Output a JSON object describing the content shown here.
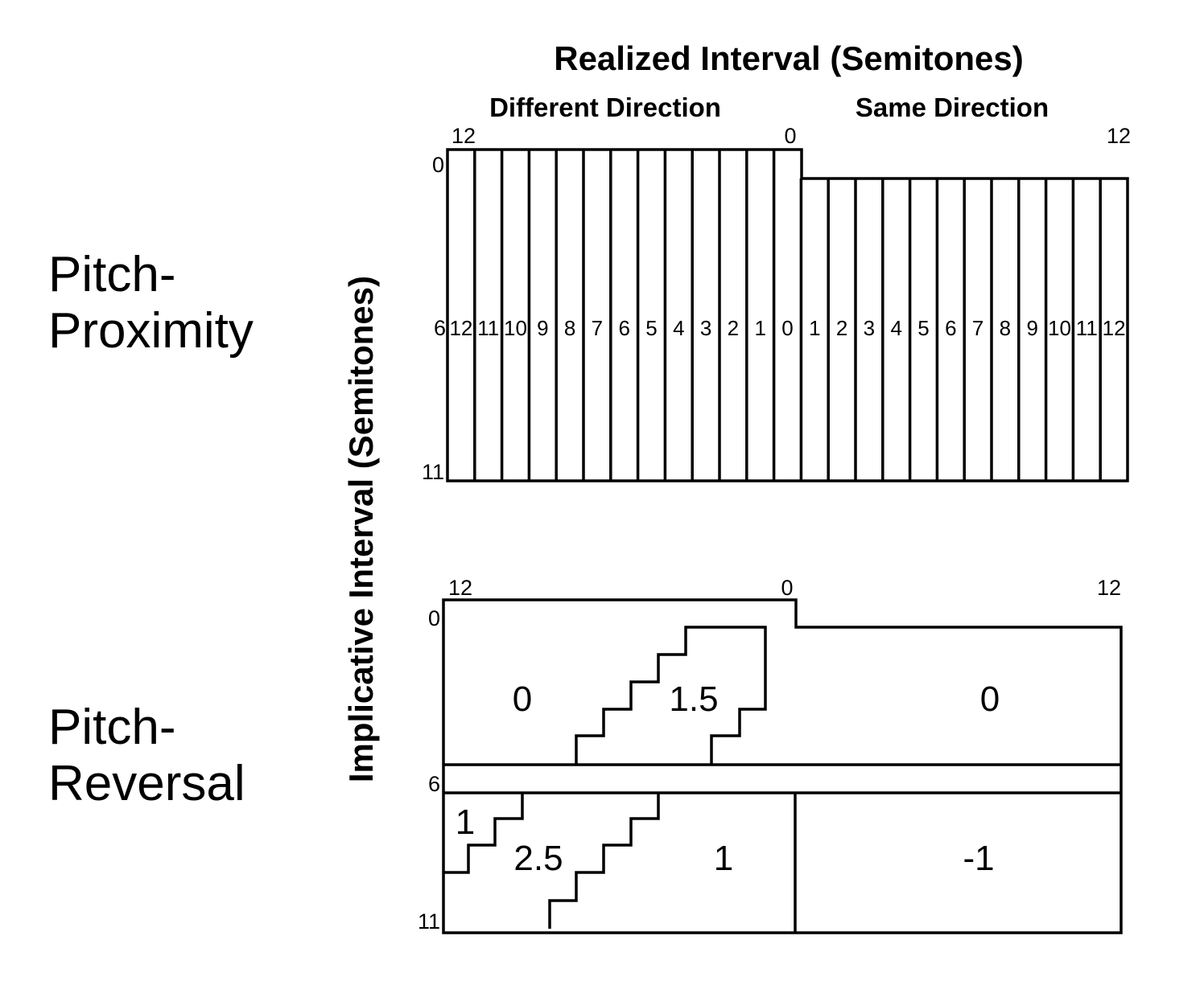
{
  "title": "Realized Interval (Semitones)",
  "subtitle_left": "Different Direction",
  "subtitle_right": "Same Direction",
  "y_axis_label": "Implicative Interval (Semitones)",
  "panels": [
    {
      "id": "proximity",
      "label_line1": "Pitch-",
      "label_line2": "Proximity",
      "x_tick_left": "12",
      "x_tick_center": "0",
      "x_tick_right": "12",
      "y_tick_top": "0",
      "y_tick_mid": "6",
      "y_tick_bottom": "11",
      "columns_left": [
        "12",
        "11",
        "10",
        "9",
        "8",
        "7",
        "6",
        "5",
        "4",
        "3",
        "2",
        "1",
        "0"
      ],
      "columns_right": [
        "1",
        "2",
        "3",
        "4",
        "5",
        "6",
        "7",
        "8",
        "9",
        "10",
        "11",
        "12"
      ]
    },
    {
      "id": "reversal",
      "label_line1": "Pitch-",
      "label_line2": "Reversal",
      "x_tick_left": "12",
      "x_tick_center": "0",
      "x_tick_right": "12",
      "y_tick_top": "0",
      "y_tick_mid": "6",
      "y_tick_bottom": "11",
      "region_values": {
        "upper_left": "0",
        "upper_middle": "1.5",
        "upper_right": "0",
        "lower_far_left": "1",
        "lower_left": "2.5",
        "lower_middle": "1",
        "lower_right": "-1"
      }
    }
  ]
}
